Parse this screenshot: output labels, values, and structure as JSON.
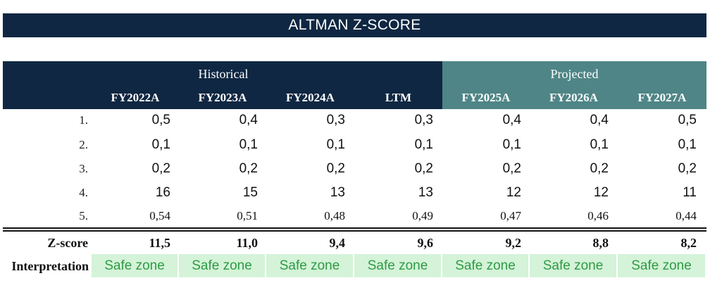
{
  "title": "ALTMAN Z-SCORE",
  "groups": {
    "historical": "Historical",
    "projected": "Projected"
  },
  "columns": [
    "FY2022A",
    "FY2023A",
    "FY2024A",
    "LTM",
    "FY2025A",
    "FY2026A",
    "FY2027A"
  ],
  "rows": [
    {
      "label": "1.",
      "values": [
        "0,5",
        "0,4",
        "0,3",
        "0,3",
        "0,4",
        "0,4",
        "0,5"
      ]
    },
    {
      "label": "2.",
      "values": [
        "0,1",
        "0,1",
        "0,1",
        "0,1",
        "0,1",
        "0,1",
        "0,1"
      ]
    },
    {
      "label": "3.",
      "values": [
        "0,2",
        "0,2",
        "0,2",
        "0,2",
        "0,2",
        "0,2",
        "0,2"
      ]
    },
    {
      "label": "4.",
      "values": [
        "16",
        "15",
        "13",
        "13",
        "12",
        "12",
        "11"
      ]
    },
    {
      "label": "5.",
      "values": [
        "0,54",
        "0,51",
        "0,48",
        "0,49",
        "0,47",
        "0,46",
        "0,44"
      ]
    }
  ],
  "zscore": {
    "label": "Z-score",
    "values": [
      "11,5",
      "11,0",
      "9,4",
      "9,6",
      "9,2",
      "8,8",
      "8,2"
    ]
  },
  "interpretation": {
    "label": "Interpretation",
    "values": [
      "Safe zone",
      "Safe zone",
      "Safe zone",
      "Safe zone",
      "Safe zone",
      "Safe zone",
      "Safe zone"
    ]
  },
  "colors": {
    "navy": "#0f2742",
    "teal": "#4f8586",
    "safe_bg": "#d4f3d8",
    "safe_text": "#2f9a45"
  }
}
